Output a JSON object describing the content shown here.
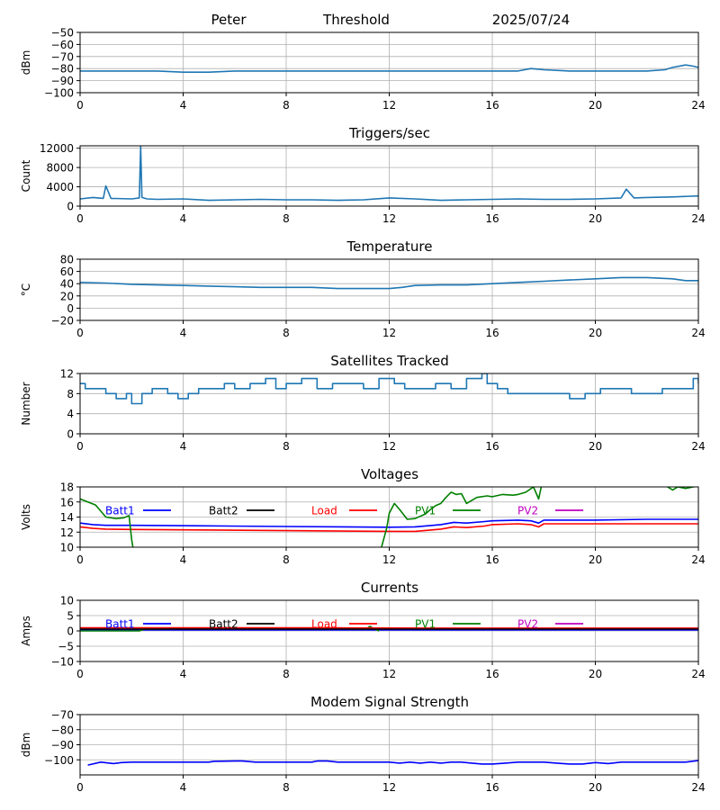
{
  "header": {
    "name": "Peter",
    "mode": "Threshold",
    "date": "2025/07/24"
  },
  "x_ticks": [
    0,
    4,
    8,
    12,
    16,
    20,
    24
  ],
  "legend_labels": {
    "batt1": "Batt1",
    "batt2": "Batt2",
    "load": "Load",
    "pv1": "PV1",
    "pv2": "PV2"
  },
  "colors": {
    "mpl_blue": "#1f77b4",
    "batt1": "#0000ff",
    "batt2": "#000000",
    "load": "#ff0000",
    "pv1": "#008000",
    "pv2": "#bf00bf",
    "grid": "#b0b0b0"
  },
  "chart_data": [
    {
      "id": "signal",
      "type": "line",
      "title": "",
      "ylabel": "dBm",
      "xlim": [
        0,
        24
      ],
      "ylim": [
        -100,
        -50
      ],
      "yticks": [
        -50,
        -60,
        -70,
        -80,
        -90,
        -100
      ],
      "grid": true,
      "series": [
        {
          "color_key": "mpl_blue",
          "x": [
            0,
            1,
            2,
            3,
            4,
            5,
            6,
            7,
            8,
            9,
            10,
            11,
            12,
            13,
            14,
            15,
            16,
            17,
            17.5,
            18,
            19,
            20,
            21,
            22,
            22.7,
            23,
            23.5,
            23.8,
            24
          ],
          "y": [
            -82,
            -82,
            -82,
            -82,
            -83,
            -83,
            -82,
            -82,
            -82,
            -82,
            -82,
            -82,
            -82,
            -82,
            -82,
            -82,
            -82,
            -82,
            -80,
            -81,
            -82,
            -82,
            -82,
            -82,
            -81,
            -79,
            -77,
            -78,
            -79
          ]
        }
      ]
    },
    {
      "id": "triggers",
      "type": "line",
      "title": "Triggers/sec",
      "ylabel": "Count",
      "xlim": [
        0,
        24
      ],
      "ylim": [
        0,
        12500
      ],
      "yticks": [
        0,
        4000,
        8000,
        12000
      ],
      "grid": true,
      "series": [
        {
          "color_key": "mpl_blue",
          "x": [
            0,
            0.5,
            0.9,
            1.0,
            1.2,
            2.0,
            2.3,
            2.35,
            2.4,
            2.6,
            3,
            4,
            5,
            6,
            7,
            8,
            9,
            10,
            11,
            12,
            13,
            14,
            15,
            16,
            17,
            18,
            19,
            20,
            21,
            21.2,
            21.5,
            22,
            23,
            24
          ],
          "y": [
            1500,
            1800,
            1600,
            4200,
            1600,
            1500,
            1700,
            12400,
            1800,
            1500,
            1400,
            1500,
            1200,
            1300,
            1400,
            1300,
            1300,
            1200,
            1300,
            1700,
            1500,
            1200,
            1300,
            1400,
            1500,
            1400,
            1400,
            1500,
            1700,
            3500,
            1700,
            1800,
            1900,
            2100
          ]
        }
      ]
    },
    {
      "id": "temperature",
      "type": "line",
      "title": "Temperature",
      "ylabel": "°C",
      "xlim": [
        0,
        24
      ],
      "ylim": [
        -20,
        80
      ],
      "yticks": [
        -20,
        0,
        20,
        40,
        60,
        80
      ],
      "grid": true,
      "series": [
        {
          "color_key": "mpl_blue",
          "x": [
            0,
            1,
            2,
            3,
            4,
            5,
            6,
            7,
            8,
            9,
            10,
            11,
            12,
            12.5,
            13,
            14,
            15,
            16,
            17,
            18,
            19,
            20,
            21,
            22,
            23,
            23.5,
            24
          ],
          "y": [
            42,
            41,
            39,
            38,
            37,
            36,
            35,
            34,
            34,
            34,
            32,
            32,
            32,
            34,
            37,
            38,
            38,
            40,
            42,
            44,
            46,
            48,
            50,
            50,
            48,
            45,
            45
          ]
        }
      ]
    },
    {
      "id": "satellites",
      "type": "line",
      "title": "Satellites Tracked",
      "ylabel": "Number",
      "xlim": [
        0,
        24
      ],
      "ylim": [
        0,
        12
      ],
      "yticks": [
        0,
        4,
        8,
        12
      ],
      "grid": true,
      "series": [
        {
          "color_key": "mpl_blue",
          "step": true,
          "x": [
            0,
            0.2,
            0.6,
            1.0,
            1.4,
            1.8,
            2.0,
            2.4,
            2.8,
            3.4,
            3.8,
            4.2,
            4.6,
            5.0,
            5.6,
            6.0,
            6.6,
            7.2,
            7.6,
            8.0,
            8.6,
            9.2,
            9.8,
            10.4,
            11.0,
            11.6,
            12.2,
            12.6,
            13.2,
            13.8,
            14.4,
            15.0,
            15.6,
            15.8,
            16.2,
            16.6,
            17.2,
            17.8,
            18.4,
            19.0,
            19.6,
            20.2,
            20.8,
            21.4,
            22.0,
            22.6,
            23.2,
            23.8,
            24
          ],
          "y": [
            10,
            9,
            9,
            8,
            7,
            8,
            6,
            8,
            9,
            8,
            7,
            8,
            9,
            9,
            10,
            9,
            10,
            11,
            9,
            10,
            11,
            9,
            10,
            10,
            9,
            11,
            10,
            9,
            9,
            10,
            9,
            11,
            12,
            10,
            9,
            8,
            8,
            8,
            8,
            7,
            8,
            9,
            9,
            8,
            8,
            9,
            9,
            11,
            10
          ]
        }
      ]
    },
    {
      "id": "voltages",
      "type": "line",
      "title": "Voltages",
      "ylabel": "Volts",
      "xlim": [
        0,
        24
      ],
      "ylim": [
        10,
        18
      ],
      "yticks": [
        10,
        12,
        14,
        16,
        18
      ],
      "grid": true,
      "series": [
        {
          "name": "Batt1",
          "color_key": "batt1",
          "x": [
            0,
            0.5,
            1,
            2,
            4,
            8,
            12,
            13,
            14,
            14.5,
            15,
            15.7,
            16,
            17,
            17.5,
            17.8,
            18,
            20,
            22,
            24
          ],
          "y": [
            13.2,
            13.0,
            12.9,
            12.9,
            12.85,
            12.75,
            12.65,
            12.7,
            13.0,
            13.3,
            13.2,
            13.4,
            13.5,
            13.6,
            13.5,
            13.2,
            13.6,
            13.6,
            13.7,
            13.7
          ]
        },
        {
          "name": "Load",
          "color_key": "load",
          "x": [
            0,
            0.5,
            1,
            2,
            4,
            8,
            12,
            13,
            14,
            14.5,
            15,
            15.7,
            16,
            17,
            17.5,
            17.8,
            18,
            20,
            22,
            24
          ],
          "y": [
            12.7,
            12.5,
            12.4,
            12.35,
            12.3,
            12.2,
            12.1,
            12.1,
            12.4,
            12.7,
            12.6,
            12.8,
            13.0,
            13.1,
            13.0,
            12.7,
            13.1,
            13.1,
            13.1,
            13.1
          ]
        },
        {
          "name": "PV1",
          "color_key": "pv1",
          "x": [
            0,
            0.3,
            0.6,
            1.0,
            1.4,
            1.7,
            1.9,
            2.0,
            2.05,
            null,
            11.7,
            11.9,
            12.0,
            12.2,
            12.4,
            12.7,
            13.0,
            13.4,
            13.6,
            13.8,
            14.0,
            14.2,
            14.4,
            14.6,
            14.8,
            15.0,
            15.4,
            15.8,
            16.0,
            16.4,
            16.8,
            17.0,
            17.3,
            17.6,
            17.8,
            17.9,
            null,
            22.8,
            23.0,
            23.2,
            23.5,
            23.8,
            24
          ],
          "y": [
            16.4,
            16.0,
            15.6,
            14.0,
            13.8,
            13.9,
            14.2,
            11.0,
            10.0,
            null,
            10.0,
            12.5,
            14.5,
            15.8,
            15.0,
            13.7,
            13.8,
            14.4,
            15.0,
            15.5,
            15.8,
            16.6,
            17.3,
            17.0,
            17.1,
            15.8,
            16.6,
            16.8,
            16.7,
            17.0,
            16.9,
            17.0,
            17.3,
            18.0,
            16.4,
            18.0,
            null,
            18.0,
            17.6,
            18.0,
            17.8,
            18.0,
            18.1
          ]
        }
      ]
    },
    {
      "id": "currents",
      "type": "line",
      "title": "Currents",
      "ylabel": "Amps",
      "xlim": [
        0,
        24
      ],
      "ylim": [
        -10,
        10
      ],
      "yticks": [
        -10,
        -5,
        0,
        5,
        10
      ],
      "grid": true,
      "series": [
        {
          "name": "Batt1",
          "color_key": "batt1",
          "x": [
            0,
            2,
            4,
            6,
            8,
            10,
            12,
            14,
            16,
            18,
            20,
            22,
            24
          ],
          "y": [
            0.3,
            0.3,
            0.3,
            0.3,
            0.3,
            0.3,
            0.3,
            0.3,
            0.3,
            0.3,
            0.3,
            0.3,
            0.3
          ]
        },
        {
          "name": "PV1",
          "color_key": "pv1",
          "x": [
            0,
            2.3,
            2.5,
            6,
            10,
            11.1,
            11.25,
            11.4,
            11.6
          ],
          "y": [
            0,
            0,
            0.6,
            0.8,
            0.7,
            0.6,
            1.5,
            0.8,
            0
          ]
        },
        {
          "name": "Load",
          "color_key": "load",
          "x": [
            0,
            2,
            4,
            6,
            8,
            10,
            12,
            14,
            16,
            18,
            20,
            22,
            24
          ],
          "y": [
            1.0,
            1.0,
            1.0,
            1.0,
            1.0,
            1.0,
            0.95,
            0.9,
            0.9,
            0.9,
            0.9,
            0.9,
            0.9
          ]
        },
        {
          "name": "Batt2",
          "color_key": "batt2",
          "x": [
            0,
            4,
            8,
            12,
            16,
            20,
            24
          ],
          "y": [
            0.6,
            0.6,
            0.6,
            0.6,
            0.6,
            0.6,
            0.6
          ]
        }
      ]
    },
    {
      "id": "modem",
      "type": "line",
      "title": "Modem Signal Strength",
      "ylabel": "dBm",
      "xlim": [
        0,
        24
      ],
      "ylim": [
        -110,
        -70
      ],
      "yticks": [
        -70,
        -80,
        -90,
        -100
      ],
      "grid": true,
      "series": [
        {
          "color_key": "batt1",
          "x": [
            0.3,
            0.8,
            1.3,
            1.6,
            2,
            3,
            4,
            5,
            5.2,
            6,
            6.3,
            6.8,
            7,
            8,
            9,
            9.2,
            9.6,
            10,
            11,
            11.7,
            12,
            12.4,
            12.8,
            13.2,
            13.6,
            14,
            14.4,
            14.8,
            15.2,
            15.6,
            16,
            16.5,
            17,
            18,
            18.5,
            19,
            19.5,
            20,
            20.5,
            21,
            22,
            23,
            23.5,
            24
          ],
          "y": [
            -103.5,
            -101.5,
            -102.5,
            -101.8,
            -101.5,
            -101.5,
            -101.5,
            -101.5,
            -101,
            -100.8,
            -100.8,
            -101.5,
            -101.5,
            -101.5,
            -101.5,
            -100.8,
            -100.8,
            -101.5,
            -101.5,
            -101.5,
            -101.5,
            -102.2,
            -101.5,
            -102.2,
            -101.5,
            -102.2,
            -101.5,
            -101.5,
            -102.2,
            -102.8,
            -102.8,
            -102.2,
            -101.5,
            -101.5,
            -102.2,
            -102.8,
            -102.8,
            -101.8,
            -102.5,
            -101.5,
            -101.5,
            -101.5,
            -101.5,
            -100.5
          ]
        }
      ]
    }
  ]
}
